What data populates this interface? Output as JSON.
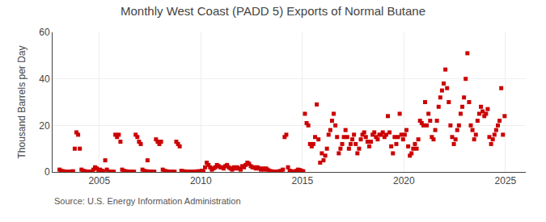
{
  "chart_data": {
    "type": "scatter",
    "title": "Monthly West Coast (PADD 5) Exports of Normal Butane",
    "ylabel": "Thousand Barrels per Day",
    "annotations": [
      "Source: U.S. Energy Information Administration"
    ],
    "color": "#cc0000",
    "marker": "square",
    "grid": true,
    "xlim": [
      2002.7,
      2026.0
    ],
    "xticks": [
      2005,
      2010,
      2015,
      2020,
      2025
    ],
    "ylim": [
      0,
      60
    ],
    "yticks": [
      0,
      20,
      40,
      60
    ],
    "x": [
      2003.041667,
      2003.125,
      2003.208333,
      2003.291667,
      2003.375,
      2003.458333,
      2003.541667,
      2003.625,
      2003.708333,
      2003.791667,
      2003.875,
      2003.958333,
      2004.041667,
      2004.125,
      2004.208333,
      2004.291667,
      2004.375,
      2004.458333,
      2004.541667,
      2004.625,
      2004.708333,
      2004.791667,
      2004.875,
      2004.958333,
      2005.041667,
      2005.125,
      2005.208333,
      2005.291667,
      2005.375,
      2005.458333,
      2005.541667,
      2005.625,
      2005.708333,
      2005.791667,
      2005.875,
      2005.958333,
      2006.041667,
      2006.125,
      2006.208333,
      2006.291667,
      2006.375,
      2006.458333,
      2006.541667,
      2006.625,
      2006.708333,
      2006.791667,
      2006.875,
      2006.958333,
      2007.041667,
      2007.125,
      2007.208333,
      2007.291667,
      2007.375,
      2007.458333,
      2007.541667,
      2007.625,
      2007.708333,
      2007.791667,
      2007.875,
      2007.958333,
      2008.041667,
      2008.125,
      2008.208333,
      2008.291667,
      2008.375,
      2008.458333,
      2008.541667,
      2008.625,
      2008.708333,
      2008.791667,
      2008.875,
      2008.958333,
      2009.041667,
      2009.125,
      2009.208333,
      2009.291667,
      2009.375,
      2009.458333,
      2009.541667,
      2009.625,
      2009.708333,
      2009.791667,
      2009.875,
      2009.958333,
      2010.041667,
      2010.125,
      2010.208333,
      2010.291667,
      2010.375,
      2010.458333,
      2010.541667,
      2010.625,
      2010.708333,
      2010.791667,
      2010.875,
      2010.958333,
      2011.041667,
      2011.125,
      2011.208333,
      2011.291667,
      2011.375,
      2011.458333,
      2011.541667,
      2011.625,
      2011.708333,
      2011.791667,
      2011.875,
      2011.958333,
      2012.041667,
      2012.125,
      2012.208333,
      2012.291667,
      2012.375,
      2012.458333,
      2012.541667,
      2012.625,
      2012.708333,
      2012.791667,
      2012.875,
      2012.958333,
      2013.041667,
      2013.125,
      2013.208333,
      2013.291667,
      2013.375,
      2013.458333,
      2013.541667,
      2013.625,
      2013.708333,
      2013.791667,
      2013.875,
      2013.958333,
      2014.041667,
      2014.125,
      2014.208333,
      2014.291667,
      2014.375,
      2014.458333,
      2014.541667,
      2014.625,
      2014.708333,
      2014.791667,
      2014.875,
      2014.958333,
      2015.041667,
      2015.125,
      2015.208333,
      2015.291667,
      2015.375,
      2015.458333,
      2015.541667,
      2015.625,
      2015.708333,
      2015.791667,
      2015.875,
      2015.958333,
      2016.041667,
      2016.125,
      2016.208333,
      2016.291667,
      2016.375,
      2016.458333,
      2016.541667,
      2016.625,
      2016.708333,
      2016.791667,
      2016.875,
      2016.958333,
      2017.041667,
      2017.125,
      2017.208333,
      2017.291667,
      2017.375,
      2017.458333,
      2017.541667,
      2017.625,
      2017.708333,
      2017.791667,
      2017.875,
      2017.958333,
      2018.041667,
      2018.125,
      2018.208333,
      2018.291667,
      2018.375,
      2018.458333,
      2018.541667,
      2018.625,
      2018.708333,
      2018.791667,
      2018.875,
      2018.958333,
      2019.041667,
      2019.125,
      2019.208333,
      2019.291667,
      2019.375,
      2019.458333,
      2019.541667,
      2019.625,
      2019.708333,
      2019.791667,
      2019.875,
      2019.958333,
      2020.041667,
      2020.125,
      2020.208333,
      2020.291667,
      2020.375,
      2020.458333,
      2020.541667,
      2020.625,
      2020.708333,
      2020.791667,
      2020.875,
      2020.958333,
      2021.041667,
      2021.125,
      2021.208333,
      2021.291667,
      2021.375,
      2021.458333,
      2021.541667,
      2021.625,
      2021.708333,
      2021.791667,
      2021.875,
      2021.958333,
      2022.041667,
      2022.125,
      2022.208333,
      2022.291667,
      2022.375,
      2022.458333,
      2022.541667,
      2022.625,
      2022.708333,
      2022.791667,
      2022.875,
      2022.958333,
      2023.041667,
      2023.125,
      2023.208333,
      2023.291667,
      2023.375,
      2023.458333,
      2023.541667,
      2023.625,
      2023.708333,
      2023.791667,
      2023.875,
      2023.958333,
      2024.041667,
      2024.125,
      2024.208333,
      2024.291667,
      2024.375,
      2024.458333,
      2024.541667,
      2024.625,
      2024.708333,
      2024.791667,
      2024.875,
      2024.958333
    ],
    "values": [
      1.0,
      0.5,
      0.3,
      0.2,
      0.1,
      0.1,
      0.1,
      0.2,
      0.3,
      10.0,
      17.0,
      16.0,
      10.0,
      1.0,
      0.5,
      0.3,
      0.2,
      0.1,
      0.1,
      0.2,
      1.0,
      2.0,
      1.5,
      0.5,
      1.0,
      0.5,
      0.3,
      5.0,
      1.0,
      0.2,
      0.1,
      0.1,
      0.1,
      16.0,
      15.0,
      16.0,
      13.0,
      1.0,
      0.5,
      0.3,
      0.2,
      0.1,
      0.1,
      0.1,
      0.1,
      16.0,
      15.0,
      13.0,
      12.0,
      1.0,
      0.5,
      0.3,
      5.0,
      0.2,
      0.1,
      0.1,
      0.1,
      14.0,
      13.0,
      12.0,
      13.0,
      1.0,
      0.5,
      0.3,
      0.2,
      0.1,
      0.1,
      0.1,
      0.1,
      13.0,
      12.0,
      11.0,
      0.5,
      0.3,
      0.2,
      0.1,
      0.1,
      0.1,
      0.1,
      0.1,
      0.1,
      0.2,
      0.3,
      0.2,
      0.5,
      0.3,
      2.0,
      4.0,
      3.0,
      2.0,
      1.0,
      1.5,
      2.0,
      3.0,
      2.5,
      2.0,
      2.0,
      1.5,
      2.5,
      3.0,
      2.0,
      1.5,
      1.0,
      2.0,
      1.5,
      2.0,
      1.5,
      1.0,
      2.5,
      2.0,
      3.0,
      4.0,
      3.5,
      2.5,
      2.0,
      2.0,
      1.5,
      2.0,
      1.5,
      1.0,
      1.5,
      1.0,
      1.5,
      1.0,
      0.5,
      0.3,
      0.2,
      0.1,
      0.1,
      0.2,
      0.3,
      0.5,
      1.0,
      15.0,
      16.0,
      2.0,
      0.5,
      0.3,
      0.2,
      0.1,
      0.5,
      1.0,
      0.8,
      0.5,
      0.3,
      25.0,
      21.0,
      20.0,
      12.0,
      11.0,
      12.0,
      15.0,
      29.0,
      14.0,
      4.0,
      8.0,
      5.0,
      7.0,
      10.0,
      16.0,
      18.0,
      22.0,
      25.0,
      20.0,
      15.0,
      8.0,
      10.0,
      12.0,
      15.0,
      18.0,
      15.0,
      10.0,
      12.0,
      14.0,
      16.0,
      12.0,
      8.0,
      10.0,
      14.0,
      16.0,
      17.0,
      15.0,
      13.0,
      11.0,
      13.0,
      16.0,
      17.0,
      15.0,
      14.0,
      16.0,
      16.0,
      17.0,
      15.0,
      16.0,
      24.0,
      17.0,
      11.0,
      8.0,
      15.0,
      12.0,
      15.0,
      25.0,
      16.0,
      14.0,
      16.0,
      18.0,
      11.0,
      7.0,
      8.0,
      10.0,
      12.0,
      10.0,
      14.0,
      22.0,
      21.0,
      20.0,
      30.0,
      20.0,
      25.0,
      22.0,
      15.0,
      14.0,
      18.0,
      22.0,
      28.0,
      32.0,
      35.0,
      38.0,
      44.0,
      36.0,
      30.0,
      20.0,
      15.0,
      12.0,
      14.0,
      18.0,
      20.0,
      25.0,
      28.0,
      32.0,
      40.0,
      51.0,
      30.0,
      20.0,
      18.0,
      14.0,
      16.0,
      22.0,
      25.0,
      28.0,
      26.0,
      24.0,
      25.0,
      27.0,
      15.0,
      12.0,
      14.0,
      16.0,
      18.0,
      20.0,
      22.0,
      36.0,
      16.0,
      24.0
    ]
  }
}
